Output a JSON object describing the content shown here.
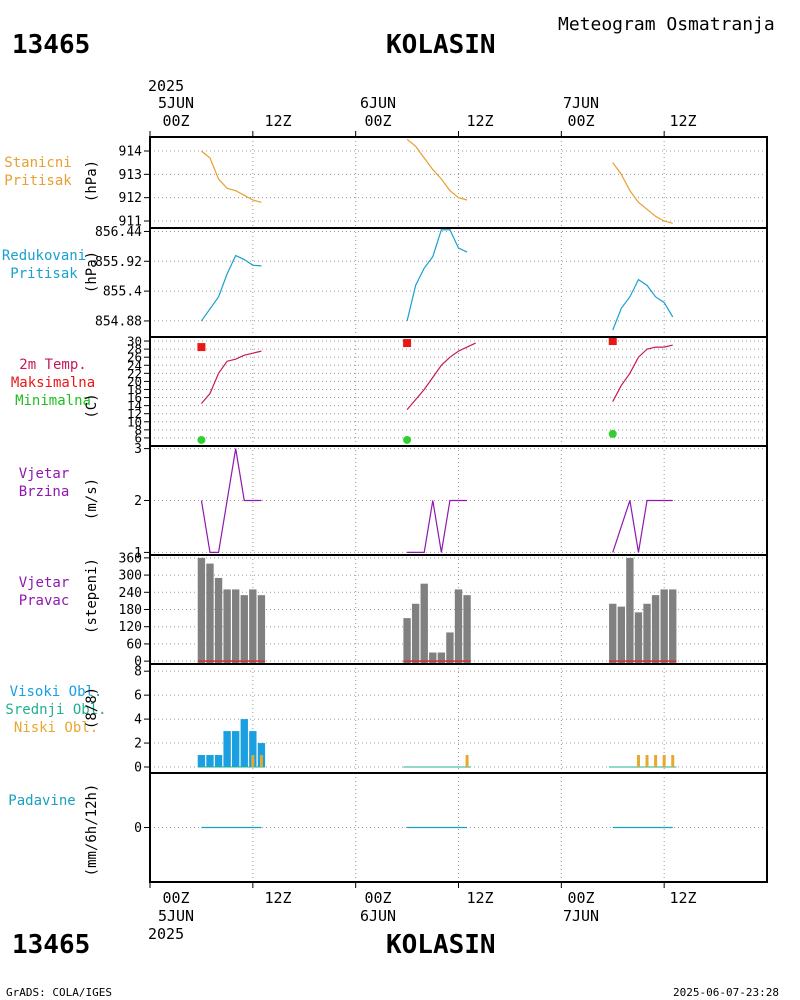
{
  "header": {
    "station_id": "13465",
    "station_name": "KOLASIN",
    "title": "Meteogram Osmatranja"
  },
  "footer": {
    "station_id": "13465",
    "station_name": "KOLASIN",
    "credit": "GrADS: COLA/IGES",
    "timestamp": "2025-06-07-23:28"
  },
  "time_axis": {
    "top_year": "2025",
    "bottom_year": "2025",
    "days": [
      {
        "date": "5JUN",
        "hours": [
          "00Z",
          "12Z"
        ]
      },
      {
        "date": "6JUN",
        "hours": [
          "00Z",
          "12Z"
        ]
      },
      {
        "date": "7JUN",
        "hours": [
          "00Z",
          "12Z"
        ]
      }
    ]
  },
  "panels": {
    "pressure": {
      "labels": [
        "Stanicni",
        "Pritisak"
      ],
      "unit": "(hPa)"
    },
    "reduced": {
      "labels": [
        "Redukovani",
        "Pritisak"
      ],
      "unit": "(hPa)"
    },
    "temp": {
      "labels": [
        "2m Temp.",
        "Maksimalna",
        "Minimalna"
      ],
      "unit": "(C)"
    },
    "wind_speed": {
      "labels": [
        "Vjetar",
        "Brzina"
      ],
      "unit": "(m/s)"
    },
    "wind_dir": {
      "labels": [
        "Vjetar",
        "Pravac"
      ],
      "unit": "(stepeni)"
    },
    "clouds": {
      "labels": [
        "Visoki Obl.",
        "Srednji Obl.",
        "Niski Obl."
      ],
      "unit": "(8/8)"
    },
    "precip": {
      "labels": [
        "Padavine"
      ],
      "unit": "(mm/6h/12h)"
    }
  },
  "colors": {
    "pressure": "#e8a030",
    "reduced": "#1aa0d0",
    "temp": "#c8185a",
    "tmax": "#e81818",
    "tmin": "#30d030",
    "wind": "#9018b0",
    "wind_dir_bar": "#808080",
    "wind_dir_base": "#d03030",
    "high_cloud": "#1aa0e0",
    "mid_cloud": "#20b090",
    "low_cloud": "#e8a830",
    "precip": "#1aa0c0"
  },
  "chart_data": [
    {
      "type": "line",
      "name": "Stanicni Pritisak",
      "ylim": [
        910.7,
        914.6
      ],
      "yticks": [
        911,
        912,
        913,
        914
      ],
      "ytick_labels": [
        "911",
        "912",
        "913",
        "914"
      ],
      "series": [
        {
          "name": "station_pressure",
          "points": [
            [
              6,
              914.0
            ],
            [
              7,
              913.7
            ],
            [
              8,
              912.8
            ],
            [
              9,
              912.4
            ],
            [
              10,
              912.3
            ],
            [
              11,
              912.1
            ],
            [
              12,
              911.9
            ],
            [
              13,
              911.8
            ],
            [
              30,
              914.5
            ],
            [
              31,
              914.2
            ],
            [
              32,
              913.7
            ],
            [
              33,
              913.2
            ],
            [
              34,
              912.8
            ],
            [
              35,
              912.3
            ],
            [
              36,
              912.0
            ],
            [
              37,
              911.9
            ],
            [
              54,
              913.5
            ],
            [
              55,
              913.0
            ],
            [
              56,
              912.3
            ],
            [
              57,
              911.8
            ],
            [
              58,
              911.5
            ],
            [
              59,
              911.2
            ],
            [
              60,
              911.0
            ],
            [
              61,
              910.9
            ]
          ]
        }
      ]
    },
    {
      "type": "line",
      "name": "Redukovani Pritisak",
      "ylim": [
        854.6,
        856.5
      ],
      "yticks": [
        854.88,
        855.4,
        855.92,
        856.44
      ],
      "ytick_labels": [
        "854.88",
        "855.4",
        "855.92",
        "856.44"
      ],
      "series": [
        {
          "name": "reduced_pressure",
          "points": [
            [
              6,
              854.88
            ],
            [
              8,
              855.3
            ],
            [
              9,
              855.7
            ],
            [
              10,
              856.02
            ],
            [
              11,
              855.95
            ],
            [
              12,
              855.85
            ],
            [
              13,
              855.84
            ],
            [
              30,
              854.88
            ],
            [
              31,
              855.5
            ],
            [
              32,
              855.8
            ],
            [
              33,
              856.0
            ],
            [
              34,
              856.47
            ],
            [
              35,
              856.47
            ],
            [
              36,
              856.15
            ],
            [
              37,
              856.08
            ],
            [
              54,
              854.72
            ],
            [
              55,
              855.1
            ],
            [
              56,
              855.3
            ],
            [
              57,
              855.6
            ],
            [
              58,
              855.5
            ],
            [
              59,
              855.3
            ],
            [
              60,
              855.2
            ],
            [
              61,
              854.95
            ]
          ]
        }
      ]
    },
    {
      "type": "line",
      "name": "2m Temp.",
      "ylim": [
        4,
        31
      ],
      "yticks": [
        6,
        8,
        10,
        12,
        14,
        16,
        18,
        20,
        22,
        24,
        26,
        28,
        30
      ],
      "ytick_labels": [
        "6",
        "8",
        "10",
        "12",
        "14",
        "16",
        "18",
        "20",
        "22",
        "24",
        "26",
        "28",
        "30"
      ],
      "series": [
        {
          "name": "temp_2m",
          "points": [
            [
              6,
              14.5
            ],
            [
              7,
              17
            ],
            [
              8,
              22
            ],
            [
              9,
              25
            ],
            [
              10,
              25.5
            ],
            [
              11,
              26.5
            ],
            [
              12,
              27
            ],
            [
              13,
              27.5
            ],
            [
              30,
              13
            ],
            [
              32,
              18
            ],
            [
              33,
              21
            ],
            [
              34,
              24
            ],
            [
              35,
              26
            ],
            [
              36,
              27.5
            ],
            [
              37,
              28.5
            ],
            [
              38,
              29.5
            ],
            [
              54,
              15
            ],
            [
              55,
              19
            ],
            [
              56,
              22
            ],
            [
              57,
              26
            ],
            [
              58,
              28
            ],
            [
              59,
              28.5
            ],
            [
              60,
              28.5
            ],
            [
              61,
              29
            ]
          ]
        },
        {
          "name": "tmax",
          "points": [
            [
              6,
              28.5
            ],
            [
              30,
              29.5
            ],
            [
              54,
              30
            ]
          ]
        },
        {
          "name": "tmin",
          "points": [
            [
              6,
              5.5
            ],
            [
              30,
              5.5
            ],
            [
              54,
              7
            ]
          ]
        }
      ]
    },
    {
      "type": "line",
      "name": "Vjetar Brzina",
      "ylim": [
        0.95,
        3.05
      ],
      "yticks": [
        1,
        2,
        3
      ],
      "ytick_labels": [
        "1",
        "2",
        "3"
      ],
      "series": [
        {
          "name": "wind_speed",
          "points": [
            [
              6,
              2
            ],
            [
              7,
              1
            ],
            [
              8,
              1
            ],
            [
              10,
              3
            ],
            [
              11,
              2
            ],
            [
              12,
              2
            ],
            [
              13,
              2
            ],
            [
              30,
              1
            ],
            [
              32,
              1
            ],
            [
              33,
              2
            ],
            [
              34,
              1
            ],
            [
              35,
              2
            ],
            [
              36,
              2
            ],
            [
              37,
              2
            ],
            [
              54,
              1
            ],
            [
              56,
              2
            ],
            [
              57,
              1
            ],
            [
              58,
              2
            ],
            [
              59,
              2
            ],
            [
              60,
              2
            ],
            [
              61,
              2
            ]
          ]
        }
      ]
    },
    {
      "type": "bar",
      "name": "Vjetar Pravac",
      "ylim": [
        -10,
        370
      ],
      "yticks": [
        0,
        60,
        120,
        180,
        240,
        300,
        360
      ],
      "ytick_labels": [
        "0",
        "60",
        "120",
        "180",
        "240",
        "300",
        "360"
      ],
      "series": [
        {
          "name": "wind_direction",
          "points": [
            [
              6,
              360
            ],
            [
              7,
              340
            ],
            [
              8,
              290
            ],
            [
              9,
              250
            ],
            [
              10,
              250
            ],
            [
              11,
              230
            ],
            [
              12,
              250
            ],
            [
              13,
              230
            ],
            [
              30,
              150
            ],
            [
              31,
              200
            ],
            [
              32,
              270
            ],
            [
              33,
              30
            ],
            [
              34,
              30
            ],
            [
              35,
              100
            ],
            [
              36,
              250
            ],
            [
              37,
              230
            ],
            [
              54,
              200
            ],
            [
              55,
              190
            ],
            [
              56,
              360
            ],
            [
              57,
              170
            ],
            [
              58,
              200
            ],
            [
              59,
              230
            ],
            [
              60,
              250
            ],
            [
              61,
              250
            ]
          ]
        }
      ]
    },
    {
      "type": "bar",
      "name": "Oblaci",
      "ylim": [
        -0.5,
        8.6
      ],
      "yticks": [
        0,
        2,
        4,
        6,
        8
      ],
      "ytick_labels": [
        "0",
        "2",
        "4",
        "6",
        "8"
      ],
      "series": [
        {
          "name": "high_cloud",
          "points": [
            [
              6,
              1
            ],
            [
              7,
              1
            ],
            [
              8,
              1
            ],
            [
              9,
              3
            ],
            [
              10,
              3
            ],
            [
              11,
              4
            ],
            [
              12,
              3
            ],
            [
              13,
              2
            ],
            [
              30,
              0
            ],
            [
              31,
              0
            ],
            [
              32,
              0
            ],
            [
              33,
              0
            ],
            [
              34,
              0
            ],
            [
              35,
              0
            ],
            [
              36,
              0
            ],
            [
              37,
              0
            ],
            [
              54,
              0
            ],
            [
              55,
              0
            ],
            [
              56,
              0
            ],
            [
              57,
              0
            ],
            [
              58,
              0
            ],
            [
              59,
              0
            ],
            [
              60,
              0
            ],
            [
              61,
              0
            ]
          ]
        },
        {
          "name": "low_cloud",
          "points": [
            [
              12,
              1
            ],
            [
              13,
              1
            ],
            [
              37,
              1
            ],
            [
              57,
              1
            ],
            [
              58,
              1
            ],
            [
              59,
              1
            ],
            [
              60,
              1
            ],
            [
              61,
              1
            ]
          ]
        }
      ]
    },
    {
      "type": "bar",
      "name": "Padavine",
      "ylim": [
        -3,
        3
      ],
      "yticks": [
        0
      ],
      "ytick_labels": [
        "0"
      ],
      "series": [
        {
          "name": "precipitation",
          "points": [
            [
              6,
              0
            ],
            [
              13,
              0
            ],
            [
              30,
              0
            ],
            [
              37,
              0
            ],
            [
              54,
              0
            ],
            [
              61,
              0
            ]
          ]
        }
      ]
    }
  ]
}
